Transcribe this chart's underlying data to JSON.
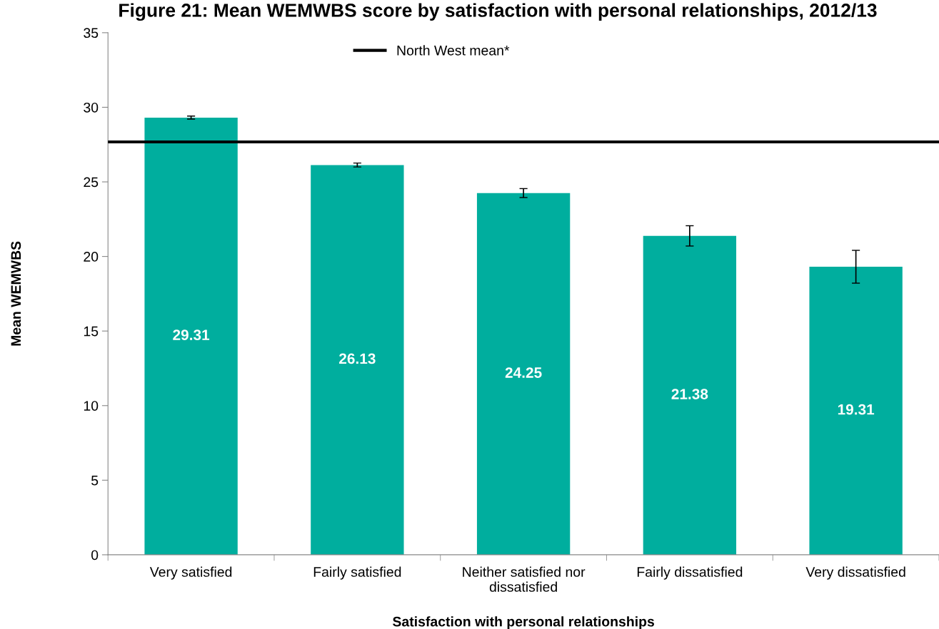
{
  "chart_data": {
    "type": "bar",
    "title": "Figure 21: Mean WEMWBS score by satisfaction with personal relationships, 2012/13",
    "xlabel": "Satisfaction with personal relationships",
    "ylabel": "Mean WEMWBS",
    "categories": [
      "Very satisfied",
      "Fairly satisfied",
      "Neither satisfied nor dissatisfied",
      "Fairly dissatisfied",
      "Very dissatisfied"
    ],
    "values": [
      29.31,
      26.13,
      24.25,
      21.38,
      19.31
    ],
    "errors": [
      0.1,
      0.13,
      0.3,
      0.68,
      1.1
    ],
    "color": "#00ae9e",
    "data_labels": true,
    "ylim": [
      0,
      35
    ],
    "yticks": [
      0,
      5,
      10,
      15,
      20,
      25,
      30,
      35
    ],
    "ref_lines": [
      {
        "axis": "y",
        "value": 27.68,
        "label": "North West mean*",
        "color": "#000000",
        "line_style": "solid"
      }
    ],
    "grid": false,
    "legend": "top"
  }
}
